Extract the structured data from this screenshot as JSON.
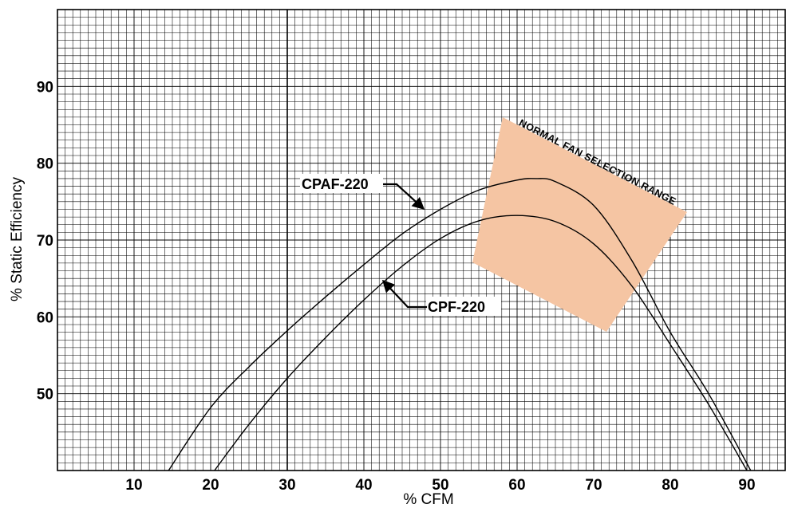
{
  "chart_data": {
    "type": "line",
    "title": "",
    "xlabel": "% CFM",
    "ylabel": "% Static Efficiency",
    "xlim": [
      0,
      95
    ],
    "ylim": [
      40,
      100
    ],
    "x_ticks": [
      10,
      20,
      30,
      40,
      50,
      60,
      70,
      80,
      90
    ],
    "y_ticks": [
      50,
      60,
      70,
      80,
      90
    ],
    "grid": true,
    "series": [
      {
        "name": "CPAF-220",
        "x": [
          14.5,
          20,
          25,
          30,
          35,
          40,
          45,
          50,
          55,
          60,
          62.5,
          65,
          70,
          75,
          80,
          85,
          90.5
        ],
        "y": [
          40,
          48.2,
          53.5,
          58.2,
          62.6,
          66.8,
          70.8,
          74,
          76.5,
          77.8,
          78,
          77.6,
          74.5,
          67.3,
          58,
          50,
          40
        ]
      },
      {
        "name": "CPF-220",
        "x": [
          20.5,
          25,
          30,
          35,
          40,
          45,
          50,
          55,
          60,
          65,
          70,
          75,
          80,
          85,
          90
        ],
        "y": [
          40,
          46,
          52,
          57.3,
          62.2,
          66.6,
          70.2,
          72.5,
          73.2,
          72.4,
          69.5,
          64,
          56.4,
          48.6,
          40
        ]
      }
    ],
    "annotations": [
      {
        "text": "NORMAL FAN SELECTION RANGE",
        "kind": "shaded-region"
      }
    ],
    "region_color": "#f5c5a3",
    "line_color": "#000000",
    "grid_color": "#000000"
  }
}
